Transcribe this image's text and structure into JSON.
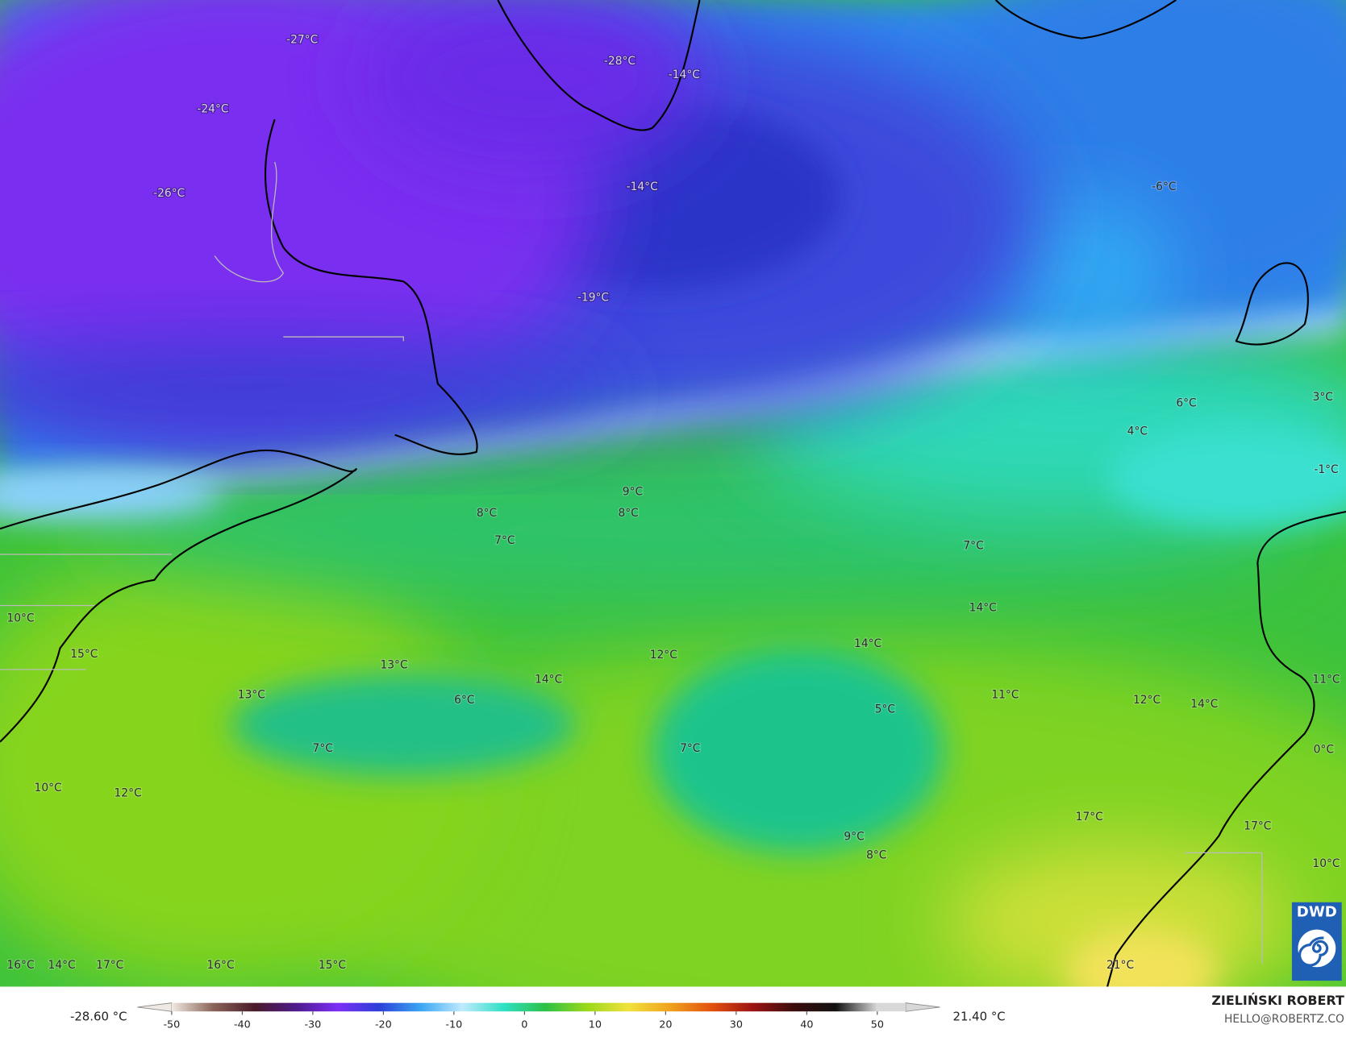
{
  "map": {
    "labels": [
      "-27°C",
      "-28°C",
      "-14°C",
      "-24°C",
      "-26°C",
      "-14°C",
      "-6°C",
      "-19°C",
      "6°C",
      "3°C",
      "4°C",
      "-1°C",
      "9°C",
      "8°C",
      "8°C",
      "7°C",
      "7°C",
      "14°C",
      "10°C",
      "15°C",
      "14°C",
      "12°C",
      "13°C",
      "14°C",
      "13°C",
      "6°C",
      "11°C",
      "12°C",
      "14°C",
      "11°C",
      "5°C",
      "7°C",
      "7°C",
      "0°C",
      "10°C",
      "12°C",
      "17°C",
      "17°C",
      "9°C",
      "8°C",
      "10°C",
      "16°C",
      "14°C",
      "17°C",
      "16°C",
      "15°C",
      "21°C"
    ],
    "colorbar": {
      "ticks": [
        -50,
        -40,
        -30,
        -20,
        -10,
        0,
        10,
        20,
        30,
        40,
        50
      ],
      "colors": [
        "#efe9e3",
        "#8a6458",
        "#4a1a2a",
        "#4e1a8c",
        "#7c2ef5",
        "#2c3fd8",
        "#3aa6f2",
        "#bfeaff",
        "#2ee0c4",
        "#2cc047",
        "#9ad81a",
        "#f0e23c",
        "#f0a21e",
        "#e2520e",
        "#9c1212",
        "#3a0c0c",
        "#111111",
        "#d8d8d8"
      ],
      "min_label": "-28.60 °C",
      "max_label": "21.40 °C"
    },
    "credit": {
      "name": "ZIELIŃSKI ROBERT",
      "email": "HELLO@ROBERTZ.CO"
    },
    "logo": "DWD"
  }
}
